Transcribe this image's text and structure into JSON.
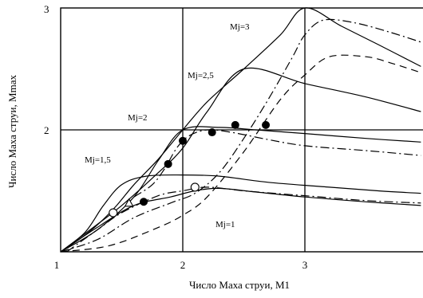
{
  "chart_data": {
    "type": "line",
    "xlabel": "Число Маха струи, M1",
    "ylabel": "Число Маха струи, Mmax",
    "xlim": [
      1,
      3.95
    ],
    "ylim": [
      1,
      3
    ],
    "x_ticks": [
      "1",
      "2",
      "3"
    ],
    "y_ticks": [
      "2",
      "3"
    ],
    "grid": true,
    "curve_labels": [
      "Mj=3",
      "Mj=2,5",
      "Mj=2",
      "Mj=1,5",
      "Mj=1"
    ],
    "series": [
      {
        "style": "solid",
        "x": [
          1,
          1.15,
          1.3,
          1.45,
          1.6,
          1.8,
          2.0,
          2.2,
          2.5,
          2.8,
          3.0,
          3.3,
          3.6,
          3.95
        ],
        "y": [
          1,
          1.1,
          1.22,
          1.37,
          1.55,
          1.76,
          2.0,
          2.23,
          2.5,
          2.78,
          3.0,
          2.85,
          2.7,
          2.52
        ]
      },
      {
        "style": "dash-dot",
        "x": [
          1,
          1.3,
          1.6,
          1.9,
          2.1,
          2.3,
          2.5,
          2.7,
          2.9,
          3.0,
          3.15,
          3.4,
          3.7,
          3.95
        ],
        "y": [
          1,
          1.1,
          1.28,
          1.4,
          1.48,
          1.65,
          1.93,
          2.25,
          2.6,
          2.78,
          2.9,
          2.88,
          2.8,
          2.72
        ]
      },
      {
        "style": "dashed",
        "x": [
          1,
          1.4,
          1.8,
          2.0,
          2.2,
          2.5,
          2.8,
          3.0,
          3.2,
          3.5,
          3.7,
          3.95
        ],
        "y": [
          1,
          1.05,
          1.2,
          1.3,
          1.45,
          1.82,
          2.25,
          2.45,
          2.6,
          2.6,
          2.55,
          2.47
        ]
      },
      {
        "style": "solid",
        "x": [
          1,
          1.2,
          1.5,
          1.8,
          2.0,
          2.2,
          2.5,
          3.0,
          3.5,
          3.95
        ],
        "y": [
          1,
          1.15,
          1.38,
          1.65,
          1.85,
          2.15,
          2.5,
          2.38,
          2.27,
          2.15
        ]
      },
      {
        "style": "solid",
        "x": [
          1,
          1.3,
          1.6,
          1.8,
          2.0,
          2.3,
          2.6,
          3.0,
          3.5,
          3.95
        ],
        "y": [
          1,
          1.18,
          1.45,
          1.75,
          2.0,
          2.02,
          2.0,
          1.97,
          1.93,
          1.9
        ]
      },
      {
        "style": "dash-dot",
        "x": [
          1.6,
          1.75,
          1.85,
          1.95,
          2.05,
          2.2,
          2.4,
          2.7,
          3.0,
          3.5,
          3.95
        ],
        "y": [
          1.45,
          1.55,
          1.68,
          1.85,
          1.95,
          2.0,
          1.98,
          1.92,
          1.87,
          1.83,
          1.79
        ]
      },
      {
        "style": "solid",
        "x": [
          1,
          1.2,
          1.35,
          1.5,
          1.7,
          2.0,
          2.3,
          2.7,
          3.2,
          3.6,
          3.95
        ],
        "y": [
          1,
          1.16,
          1.38,
          1.55,
          1.62,
          1.63,
          1.62,
          1.57,
          1.53,
          1.5,
          1.48
        ]
      },
      {
        "style": "solid",
        "x": [
          1,
          1.3,
          1.6,
          1.9,
          2.1,
          2.3,
          2.6,
          3.0,
          3.5,
          3.95
        ],
        "y": [
          1,
          1.2,
          1.38,
          1.45,
          1.5,
          1.52,
          1.49,
          1.45,
          1.41,
          1.38
        ]
      },
      {
        "style": "dash-dot",
        "x": [
          1.05,
          1.3,
          1.5,
          1.8,
          2.0,
          2.2,
          2.5,
          3.0,
          3.5,
          3.95
        ],
        "y": [
          1.0,
          1.18,
          1.32,
          1.46,
          1.5,
          1.53,
          1.5,
          1.46,
          1.42,
          1.4
        ]
      }
    ],
    "markers": [
      {
        "shape": "filled-circle",
        "x": 1.68,
        "y": 1.41
      },
      {
        "shape": "filled-circle",
        "x": 1.88,
        "y": 1.72
      },
      {
        "shape": "filled-circle",
        "x": 2.0,
        "y": 1.91
      },
      {
        "shape": "filled-circle",
        "x": 2.24,
        "y": 1.98
      },
      {
        "shape": "filled-circle",
        "x": 2.43,
        "y": 2.04
      },
      {
        "shape": "filled-circle",
        "x": 2.68,
        "y": 2.04
      },
      {
        "shape": "open-circle",
        "x": 1.43,
        "y": 1.32
      },
      {
        "shape": "open-circle",
        "x": 2.1,
        "y": 1.53
      },
      {
        "shape": "open-triangle",
        "x": 1.56,
        "y": 1.4
      }
    ]
  }
}
